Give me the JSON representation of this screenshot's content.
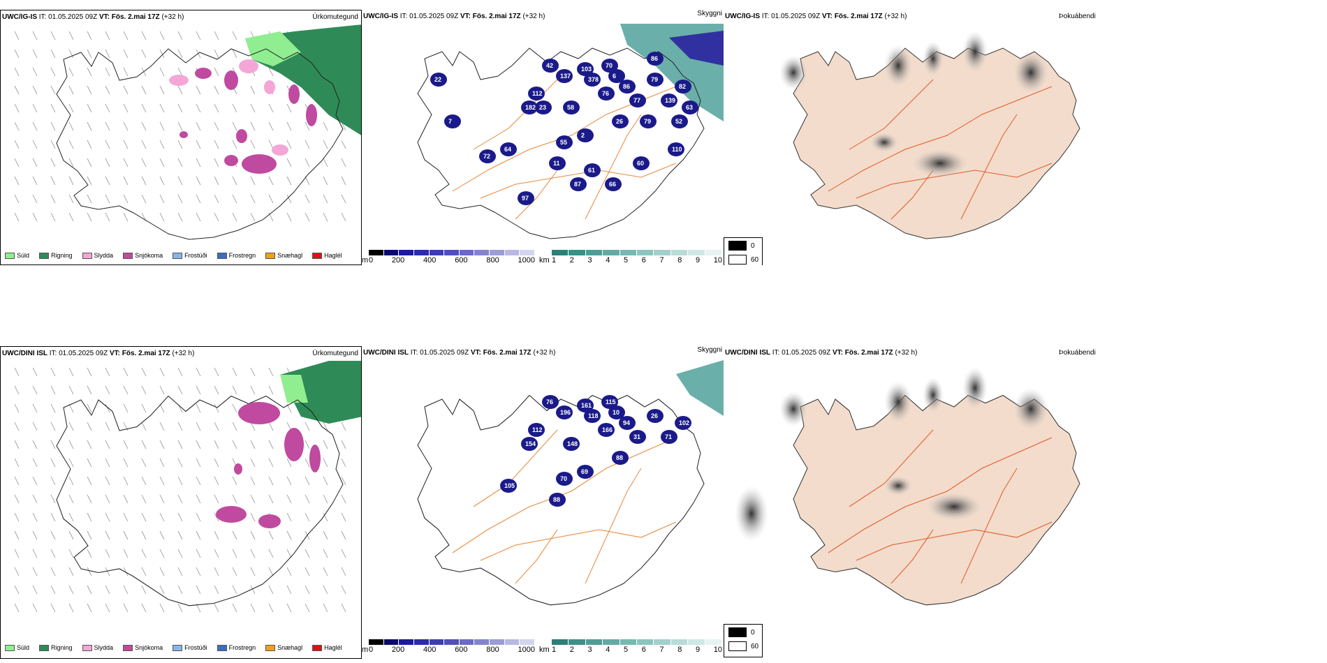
{
  "rows": [
    {
      "model": "UWC/IG-IS",
      "it_label": "IT:",
      "it_value": "01.05.2025 09Z",
      "vt_label": "VT:",
      "vt_value": "Fös. 2.mai 17Z",
      "lead": "(+32 h)",
      "panels": {
        "precip": {
          "title": "Úrkomutegund"
        },
        "cloud": {
          "title": "Skyggni",
          "labels": [
            "42",
            "137",
            "103",
            "378",
            "70",
            "6",
            "86",
            "76",
            "77",
            "79",
            "139",
            "82",
            "112",
            "182",
            "58",
            "26",
            "2",
            "55",
            "64",
            "11",
            "61",
            "60",
            "110",
            "22",
            "7",
            "72",
            "97",
            "23",
            "87",
            "66",
            "79",
            "52",
            "63",
            "86"
          ]
        },
        "fog": {
          "title": "Þokuábendi"
        }
      }
    },
    {
      "model": "UWC/DINI ISL",
      "it_label": "IT:",
      "it_value": "01.05.2025 09Z",
      "vt_label": "VT:",
      "vt_value": "Fös. 2.mai 17Z",
      "lead": "(+32 h)",
      "panels": {
        "precip": {
          "title": "Úrkomutegund"
        },
        "cloud": {
          "title": "Skyggni",
          "labels": [
            "76",
            "196",
            "161",
            "118",
            "115",
            "10",
            "94",
            "166",
            "31",
            "26",
            "71",
            "102",
            "112",
            "154",
            "148",
            "88",
            "69",
            "70",
            "105",
            "88"
          ]
        },
        "fog": {
          "title": "Þokuábendi"
        }
      }
    }
  ],
  "precip_legend": [
    {
      "label": "Súld",
      "color": "#90ee90"
    },
    {
      "label": "Rigning",
      "color": "#2e8b57"
    },
    {
      "label": "Slydda",
      "color": "#f4a6d7"
    },
    {
      "label": "Snjókoma",
      "color": "#c04aa0"
    },
    {
      "label": "Frostúði",
      "color": "#87b7ea"
    },
    {
      "label": "Frostregn",
      "color": "#3b6fbf"
    },
    {
      "label": "Snæhagl",
      "color": "#f0a020"
    },
    {
      "label": "Haglél",
      "color": "#e01010"
    }
  ],
  "cloud_base_bar": {
    "unit": "m",
    "ticks": [
      "0",
      "200",
      "400",
      "600",
      "800",
      "1000"
    ],
    "colors": [
      "#000000",
      "#0a0a6a",
      "#1a1a9a",
      "#2c2ca8",
      "#3d3db0",
      "#5050b8",
      "#6a6ac4",
      "#8484cc",
      "#9c9cd6",
      "#b8b8e2",
      "#d4d4ee"
    ]
  },
  "visibility_bar": {
    "unit": "km",
    "ticks": [
      "1",
      "2",
      "3",
      "4",
      "5",
      "6",
      "7",
      "8",
      "9",
      "10"
    ],
    "colors": [
      "#2e7e78",
      "#3f8e88",
      "#519c96",
      "#64aaa4",
      "#78b8b2",
      "#8cc4bf",
      "#a2d0cb",
      "#b8dcd8",
      "#cfe8e5",
      "#e6f3f1"
    ]
  },
  "fog_legend": {
    "items": [
      {
        "label": "0",
        "color": "#000000"
      },
      {
        "label": "60",
        "color": "#ffffff"
      }
    ]
  }
}
